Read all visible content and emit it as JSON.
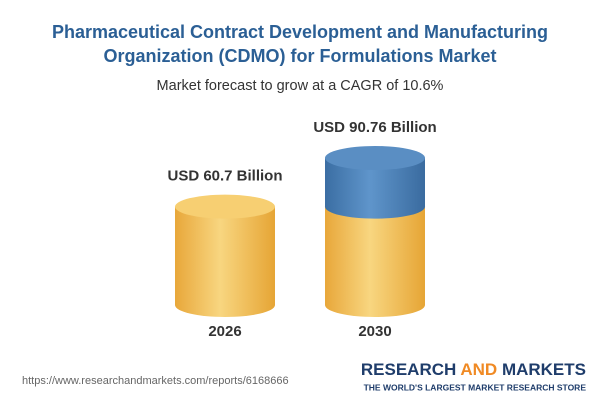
{
  "chart_data": {
    "type": "cylinder",
    "title": "Pharmaceutical Contract Development and Manufacturing Organization (CDMO) for Formulations Market",
    "subtitle": "Market forecast to grow at a CAGR of 10.6%",
    "categories": [
      "2026",
      "2030"
    ],
    "values": [
      60.7,
      90.76
    ],
    "value_labels": [
      "USD 60.7 Billion",
      "USD 90.76 Billion"
    ],
    "colors": [
      "#f2bf4e",
      "#4a80b9"
    ]
  },
  "footer": {
    "url": "https://www.researchandmarkets.com/reports/6168666",
    "brand": [
      "RESEARCH ",
      "AND",
      " MARKETS"
    ],
    "tagline": "THE WORLD'S LARGEST MARKET RESEARCH STORE"
  }
}
